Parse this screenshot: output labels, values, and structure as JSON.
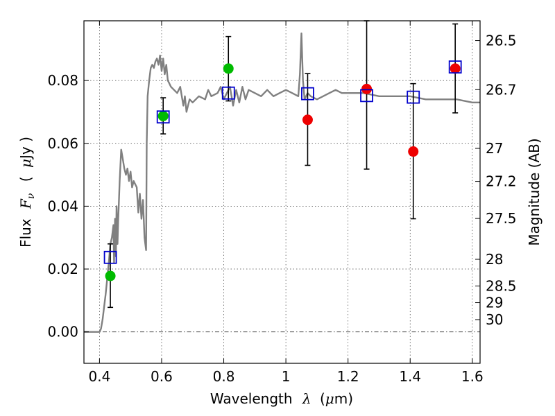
{
  "chart_data": {
    "type": "scatter",
    "xlim": [
      0.35,
      1.625
    ],
    "ylim": [
      -0.01,
      0.099
    ],
    "grid": true,
    "x_ticks": [
      {
        "value": 0.4,
        "label": "0.4"
      },
      {
        "value": 0.6,
        "label": "0.6"
      },
      {
        "value": 0.8,
        "label": "0.8"
      },
      {
        "value": 1.0,
        "label": "1"
      },
      {
        "value": 1.2,
        "label": "1.2"
      },
      {
        "value": 1.4,
        "label": "1.4"
      },
      {
        "value": 1.6,
        "label": "1.6"
      }
    ],
    "y_ticks": [
      {
        "value": 0.0,
        "label": "0.00"
      },
      {
        "value": 0.02,
        "label": "0.02"
      },
      {
        "value": 0.04,
        "label": "0.04"
      },
      {
        "value": 0.06,
        "label": "0.06"
      },
      {
        "value": 0.08,
        "label": "0.08"
      }
    ],
    "secondary_y_ticks": [
      {
        "value": 0.0927,
        "label": "26.5"
      },
      {
        "value": 0.0771,
        "label": "26.7"
      },
      {
        "value": 0.0584,
        "label": "27"
      },
      {
        "value": 0.0479,
        "label": "27.2"
      },
      {
        "value": 0.0361,
        "label": "27.5"
      },
      {
        "value": 0.0231,
        "label": "28"
      },
      {
        "value": 0.0146,
        "label": "28.5"
      },
      {
        "value": 0.0093,
        "label": "29"
      },
      {
        "value": 0.0039,
        "label": "30"
      }
    ],
    "xlabel_text": "Wavelength",
    "xlabel_symbol": "λ",
    "xlabel_unit_open": "(",
    "xlabel_unit_mu": "μ",
    "xlabel_unit_rest": "m)",
    "ylabel_text": "Flux",
    "ylabel_symbol": "F",
    "ylabel_subscript": "ν",
    "ylabel_unit_open": "(",
    "ylabel_unit_mu": "μ",
    "ylabel_unit_rest": "Jy )",
    "y2label": "Magnitude (AB)",
    "zero_line": 0.0,
    "colors": {
      "model": "#808080",
      "model_points": "#0000cc",
      "green": "#00bb00",
      "red": "#ee0000",
      "errorbar": "#000000"
    },
    "model_spectrum": {
      "x": [
        0.35,
        0.395,
        0.4,
        0.405,
        0.41,
        0.415,
        0.42,
        0.43,
        0.435,
        0.44,
        0.445,
        0.447,
        0.45,
        0.453,
        0.455,
        0.458,
        0.46,
        0.465,
        0.47,
        0.475,
        0.48,
        0.485,
        0.49,
        0.495,
        0.5,
        0.505,
        0.51,
        0.52,
        0.525,
        0.53,
        0.535,
        0.54,
        0.545,
        0.55,
        0.552,
        0.555,
        0.56,
        0.565,
        0.57,
        0.575,
        0.58,
        0.585,
        0.59,
        0.595,
        0.6,
        0.605,
        0.61,
        0.615,
        0.62,
        0.625,
        0.63,
        0.64,
        0.65,
        0.66,
        0.67,
        0.675,
        0.68,
        0.685,
        0.69,
        0.7,
        0.72,
        0.74,
        0.75,
        0.76,
        0.78,
        0.79,
        0.8,
        0.81,
        0.82,
        0.83,
        0.84,
        0.85,
        0.86,
        0.87,
        0.88,
        0.9,
        0.92,
        0.94,
        0.96,
        0.98,
        1.0,
        1.02,
        1.04,
        1.045,
        1.05,
        1.055,
        1.06,
        1.07,
        1.08,
        1.1,
        1.12,
        1.14,
        1.16,
        1.18,
        1.2,
        1.25,
        1.3,
        1.35,
        1.4,
        1.45,
        1.5,
        1.55,
        1.6,
        1.625
      ],
      "y": [
        0.0,
        0.0,
        0.0,
        0.001,
        0.004,
        0.008,
        0.012,
        0.022,
        0.028,
        0.03,
        0.034,
        0.022,
        0.036,
        0.024,
        0.04,
        0.028,
        0.035,
        0.048,
        0.058,
        0.055,
        0.052,
        0.05,
        0.052,
        0.048,
        0.051,
        0.046,
        0.048,
        0.046,
        0.038,
        0.044,
        0.036,
        0.042,
        0.03,
        0.026,
        0.06,
        0.075,
        0.08,
        0.084,
        0.085,
        0.084,
        0.086,
        0.087,
        0.085,
        0.088,
        0.083,
        0.087,
        0.082,
        0.085,
        0.08,
        0.079,
        0.078,
        0.077,
        0.076,
        0.078,
        0.072,
        0.075,
        0.07,
        0.072,
        0.074,
        0.073,
        0.075,
        0.074,
        0.077,
        0.075,
        0.076,
        0.078,
        0.074,
        0.076,
        0.078,
        0.072,
        0.077,
        0.073,
        0.078,
        0.074,
        0.077,
        0.076,
        0.075,
        0.077,
        0.075,
        0.076,
        0.077,
        0.076,
        0.075,
        0.082,
        0.095,
        0.08,
        0.074,
        0.076,
        0.075,
        0.074,
        0.075,
        0.076,
        0.077,
        0.076,
        0.076,
        0.076,
        0.075,
        0.075,
        0.075,
        0.074,
        0.074,
        0.074,
        0.073,
        0.073
      ]
    },
    "model_points": {
      "x": [
        0.435,
        0.605,
        0.815,
        1.07,
        1.26,
        1.41,
        1.545
      ],
      "y": [
        0.0237,
        0.0684,
        0.076,
        0.0758,
        0.0752,
        0.0747,
        0.0843
      ]
    },
    "observed": [
      {
        "x": 0.435,
        "y": 0.0178,
        "err_low": 0.0078,
        "err_high": 0.028,
        "color": "green"
      },
      {
        "x": 0.605,
        "y": 0.0687,
        "err_low": 0.063,
        "err_high": 0.0745,
        "color": "green"
      },
      {
        "x": 0.815,
        "y": 0.0838,
        "err_low": 0.0735,
        "err_high": 0.094,
        "color": "green"
      },
      {
        "x": 1.07,
        "y": 0.0675,
        "err_low": 0.053,
        "err_high": 0.0822,
        "color": "red"
      },
      {
        "x": 1.26,
        "y": 0.0773,
        "err_low": 0.0518,
        "err_high": 0.099,
        "color": "red"
      },
      {
        "x": 1.41,
        "y": 0.0574,
        "err_low": 0.036,
        "err_high": 0.079,
        "color": "red"
      },
      {
        "x": 1.545,
        "y": 0.0838,
        "err_low": 0.0697,
        "err_high": 0.098,
        "color": "red"
      }
    ]
  }
}
